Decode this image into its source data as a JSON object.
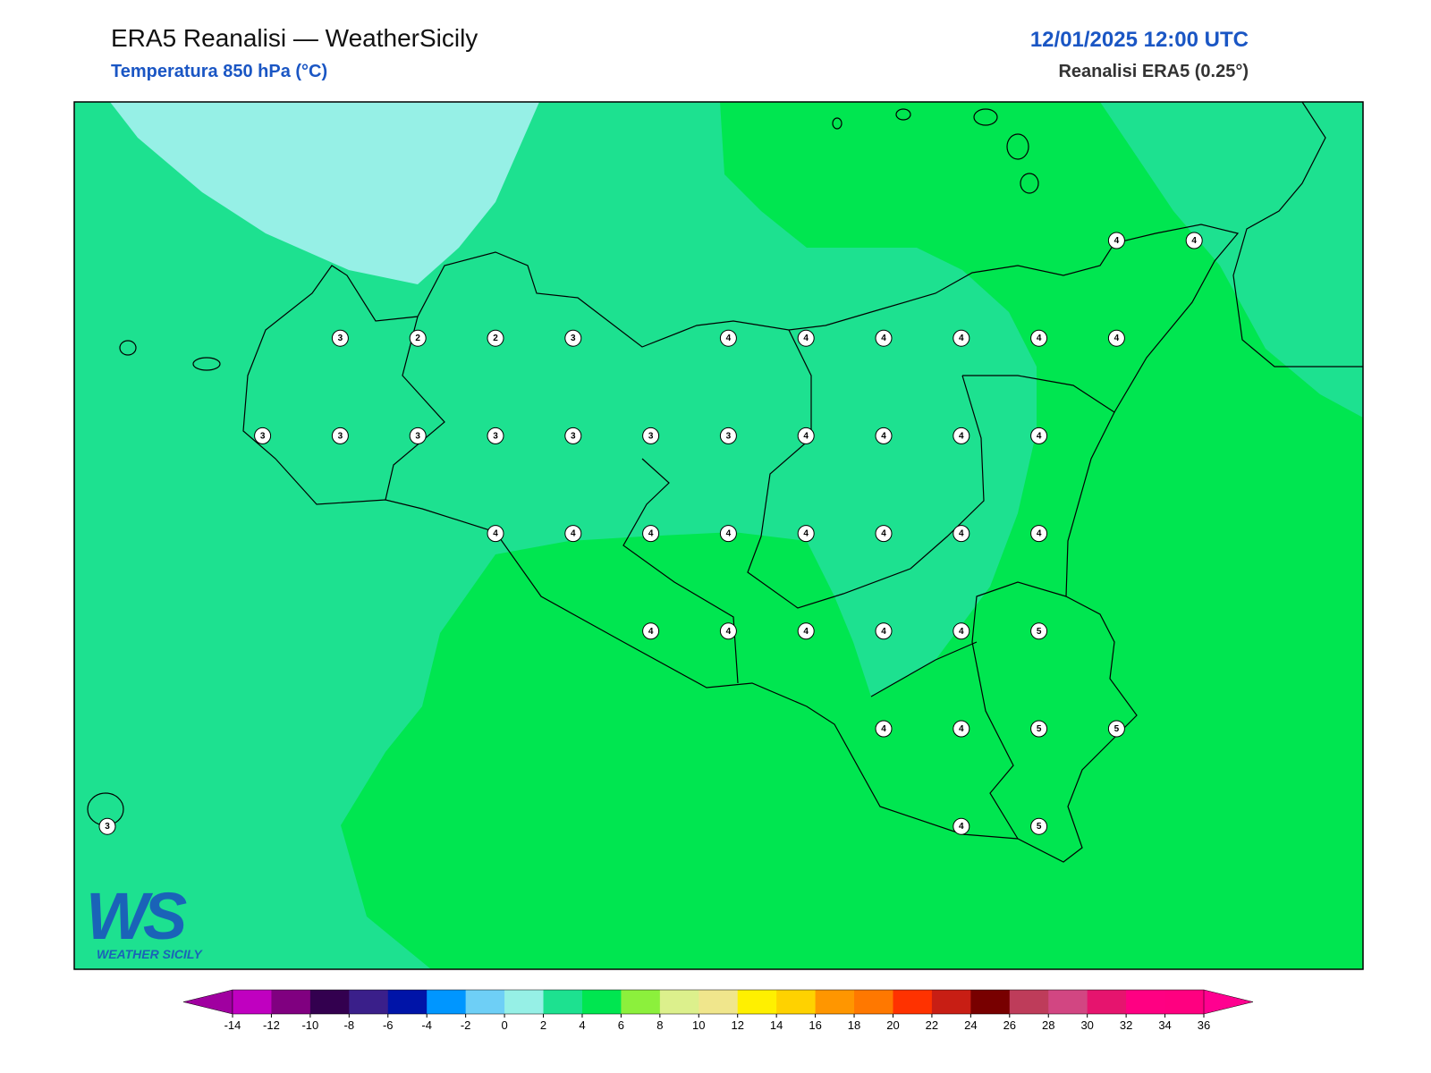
{
  "header": {
    "title": "ERA5 Reanalisi — WeatherSicily",
    "subtitle": "Temperatura 850 hPa (°C)",
    "datetime": "12/01/2025 12:00 UTC",
    "source": "Reanalisi ERA5 (0.25°)"
  },
  "logo": {
    "letters": "WS",
    "name": "WEATHER SICILY"
  },
  "temperature_grid": [
    [
      null,
      null,
      null,
      null,
      null,
      null,
      null,
      null,
      null,
      null,
      null,
      null,
      null,
      4,
      4
    ],
    [
      null,
      null,
      null,
      3,
      2,
      2,
      3,
      null,
      4,
      4,
      4,
      4,
      4,
      4,
      null
    ],
    [
      null,
      null,
      3,
      3,
      3,
      3,
      3,
      3,
      3,
      4,
      4,
      4,
      4,
      null,
      null
    ],
    [
      null,
      null,
      null,
      null,
      null,
      4,
      4,
      4,
      4,
      4,
      4,
      4,
      4,
      null,
      null
    ],
    [
      null,
      null,
      null,
      null,
      null,
      null,
      null,
      4,
      4,
      4,
      4,
      4,
      5,
      null,
      null
    ],
    [
      null,
      null,
      null,
      null,
      null,
      null,
      null,
      null,
      null,
      null,
      4,
      4,
      5,
      5,
      null
    ],
    [
      3,
      null,
      null,
      null,
      null,
      null,
      null,
      null,
      null,
      null,
      null,
      4,
      5,
      null,
      null
    ]
  ],
  "colorbar": {
    "levels": [
      -14,
      -12,
      -10,
      -8,
      -6,
      -4,
      -2,
      0,
      2,
      4,
      6,
      8,
      10,
      12,
      14,
      16,
      18,
      20,
      22,
      24,
      26,
      28,
      30,
      32,
      34,
      36
    ],
    "colors": [
      "#c000c0",
      "#800080",
      "#33004f",
      "#3a1f8a",
      "#0014a8",
      "#0096ff",
      "#6ecff6",
      "#96f0e6",
      "#1de190",
      "#00e650",
      "#8cf03c",
      "#dcf08c",
      "#f0e68c",
      "#fff000",
      "#ffd200",
      "#ff9600",
      "#ff7800",
      "#ff3200",
      "#c81e14",
      "#780000",
      "#be3c5a",
      "#d24682",
      "#e6146e",
      "#ff0082",
      "#ff0080"
    ],
    "under_color": "#a000a0",
    "over_color": "#ff0090"
  }
}
